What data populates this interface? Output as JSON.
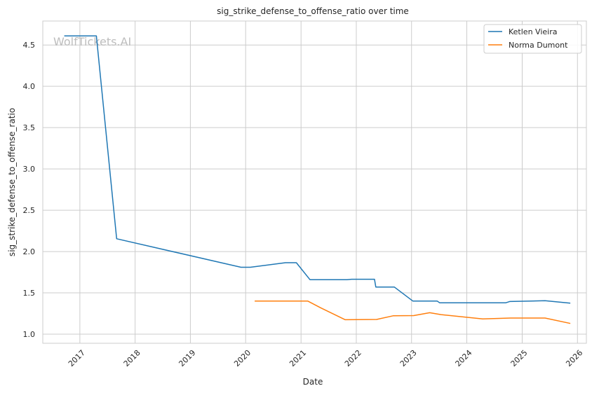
{
  "watermark": "WolfTickets.AI",
  "chart_data": {
    "type": "line",
    "title": "sig_strike_defense_to_offense_ratio over time",
    "xlabel": "Date",
    "ylabel": "sig_strike_defense_to_offense_ratio",
    "xlim": [
      "2016-05-01",
      "2026-03-01"
    ],
    "ylim": [
      0.89,
      4.79
    ],
    "x_ticks": [
      "2017-01-01",
      "2018-01-01",
      "2019-01-01",
      "2020-01-01",
      "2021-01-01",
      "2022-01-01",
      "2023-01-01",
      "2024-01-01",
      "2025-01-01",
      "2026-01-01"
    ],
    "x_tick_labels": [
      "2017",
      "2018",
      "2019",
      "2020",
      "2021",
      "2022",
      "2023",
      "2024",
      "2025",
      "2026"
    ],
    "y_ticks": [
      1.0,
      1.5,
      2.0,
      2.5,
      3.0,
      3.5,
      4.0,
      4.5
    ],
    "y_tick_labels": [
      "1.0",
      "1.5",
      "2.0",
      "2.5",
      "3.0",
      "3.5",
      "4.0",
      "4.5"
    ],
    "grid": true,
    "legend_position": "top-right",
    "series": [
      {
        "name": "Ketlen Vieira",
        "color": "#1f77b4",
        "points": [
          [
            "2016-09-20",
            4.61
          ],
          [
            "2017-04-20",
            4.61
          ],
          [
            "2017-09-01",
            2.155
          ],
          [
            "2019-12-01",
            1.81
          ],
          [
            "2020-02-01",
            1.81
          ],
          [
            "2020-09-20",
            1.865
          ],
          [
            "2020-12-01",
            1.865
          ],
          [
            "2021-03-01",
            1.66
          ],
          [
            "2021-11-01",
            1.66
          ],
          [
            "2021-12-01",
            1.665
          ],
          [
            "2022-05-01",
            1.665
          ],
          [
            "2022-05-10",
            1.57
          ],
          [
            "2022-09-10",
            1.57
          ],
          [
            "2023-01-10",
            1.4
          ],
          [
            "2023-06-20",
            1.4
          ],
          [
            "2023-07-05",
            1.38
          ],
          [
            "2024-09-15",
            1.38
          ],
          [
            "2024-10-10",
            1.395
          ],
          [
            "2025-06-01",
            1.405
          ],
          [
            "2025-11-15",
            1.375
          ]
        ]
      },
      {
        "name": "Norma Dumont",
        "color": "#ff7f0e",
        "points": [
          [
            "2020-03-01",
            1.4
          ],
          [
            "2021-02-15",
            1.4
          ],
          [
            "2021-05-10",
            1.32
          ],
          [
            "2021-10-20",
            1.175
          ],
          [
            "2022-05-15",
            1.178
          ],
          [
            "2022-09-01",
            1.222
          ],
          [
            "2023-01-15",
            1.225
          ],
          [
            "2023-05-01",
            1.26
          ],
          [
            "2023-07-15",
            1.237
          ],
          [
            "2024-04-15",
            1.185
          ],
          [
            "2024-10-15",
            1.195
          ],
          [
            "2025-06-01",
            1.195
          ],
          [
            "2025-11-15",
            1.13
          ]
        ]
      }
    ]
  }
}
